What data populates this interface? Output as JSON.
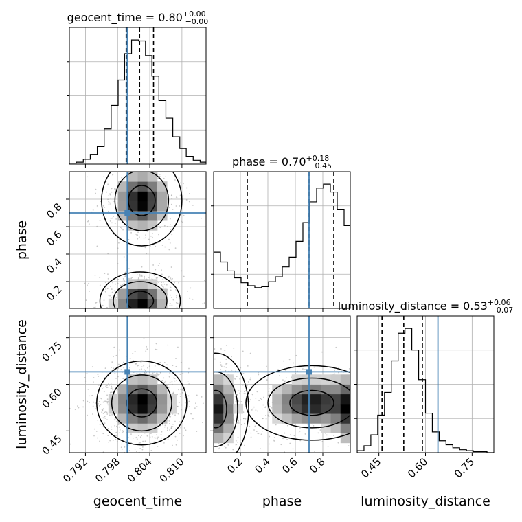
{
  "chart_data": {
    "type": "corner",
    "parameters": [
      {
        "name": "geocent_time",
        "axis_label": "geocent_time",
        "title": {
          "prefix": "geocent_time = ",
          "value": "0.80",
          "plus": "+0.00",
          "minus": "−0.00"
        },
        "range": [
          0.789,
          0.8145
        ],
        "ticks": [
          0.792,
          0.798,
          0.804,
          0.81
        ],
        "tick_labels": [
          "0.792",
          "0.798",
          "0.804",
          "0.810"
        ],
        "injection": 0.7998,
        "quantiles": [
          0.7996,
          0.8021,
          0.8047
        ],
        "hist_edges": [
          0.789,
          0.7903,
          0.7916,
          0.7929,
          0.7942,
          0.7955,
          0.7968,
          0.7981,
          0.7993,
          0.8006,
          0.8019,
          0.8032,
          0.8044,
          0.8057,
          0.807,
          0.8083,
          0.8096,
          0.8108,
          0.8121,
          0.8134,
          0.8145
        ],
        "hist_counts": [
          1,
          2,
          5,
          10,
          18,
          36,
          60,
          86,
          113,
          127,
          126,
          111,
          90,
          65,
          47,
          28,
          16,
          8,
          4,
          2
        ]
      },
      {
        "name": "phase",
        "axis_label": "phase",
        "title": {
          "prefix": "phase = ",
          "value": "0.70",
          "plus": "+0.18",
          "minus": "−0.45"
        },
        "range": [
          0.005,
          1.0
        ],
        "ticks": [
          0.2,
          0.4,
          0.6,
          0.8
        ],
        "tick_labels": [
          "0.2",
          "0.4",
          "0.6",
          "0.8"
        ],
        "injection": 0.7,
        "quantiles": [
          0.25,
          0.7,
          0.88
        ],
        "hist_edges": [
          0.005,
          0.055,
          0.105,
          0.155,
          0.205,
          0.255,
          0.305,
          0.355,
          0.405,
          0.455,
          0.505,
          0.555,
          0.605,
          0.655,
          0.705,
          0.755,
          0.805,
          0.855,
          0.905,
          0.955,
          1.0
        ],
        "hist_counts": [
          57,
          47,
          38,
          31,
          26,
          23,
          21,
          22,
          27,
          32,
          42,
          52,
          68,
          87,
          108,
          122,
          126,
          118,
          100,
          84
        ]
      },
      {
        "name": "luminosity_distance",
        "axis_label": "luminosity_distance",
        "title": {
          "prefix": "luminosity_distance = ",
          "value": "0.53",
          "plus": "+0.06",
          "minus": "−0.07"
        },
        "range": [
          0.38,
          0.82
        ],
        "ticks": [
          0.45,
          0.6,
          0.75
        ],
        "tick_labels": [
          "0.45",
          "0.60",
          "0.75"
        ],
        "injection": 0.64,
        "quantiles": [
          0.46,
          0.53,
          0.59
        ],
        "hist_edges": [
          0.38,
          0.402,
          0.424,
          0.446,
          0.468,
          0.49,
          0.512,
          0.534,
          0.556,
          0.578,
          0.6,
          0.622,
          0.644,
          0.666,
          0.688,
          0.71,
          0.732,
          0.754,
          0.776,
          0.798,
          0.82
        ],
        "hist_counts": [
          2,
          7,
          18,
          38,
          61,
          93,
          121,
          126,
          104,
          74,
          40,
          21,
          12,
          8,
          5,
          3,
          2,
          1,
          1,
          0
        ]
      }
    ],
    "pairs": [
      {
        "x": "geocent_time",
        "y": "phase",
        "modes": [
          {
            "cx": 0.8025,
            "cy": 0.79,
            "sx": 0.0025,
            "sy": 0.11
          },
          {
            "cx": 0.8022,
            "cy": 0.06,
            "sx": 0.0025,
            "sy": 0.07
          }
        ]
      },
      {
        "x": "geocent_time",
        "y": "luminosity_distance",
        "modes": [
          {
            "cx": 0.8025,
            "cy": 0.54,
            "sx": 0.0028,
            "sy": 0.045
          }
        ]
      },
      {
        "x": "phase",
        "y": "luminosity_distance",
        "modes": [
          {
            "cx": 0.72,
            "cy": 0.54,
            "sx": 0.16,
            "sy": 0.04
          },
          {
            "cx": 0.02,
            "cy": 0.52,
            "sx": 0.08,
            "sy": 0.06
          }
        ]
      }
    ],
    "contour_levels": [
      "39.3%",
      "86.5%",
      "98.9%"
    ],
    "grid": true,
    "colors": {
      "injection": "#4682b4",
      "hist": "#000000",
      "quantile": "#000000",
      "scatter": "#9a9a9a",
      "grid": "#b0b0b0"
    }
  }
}
